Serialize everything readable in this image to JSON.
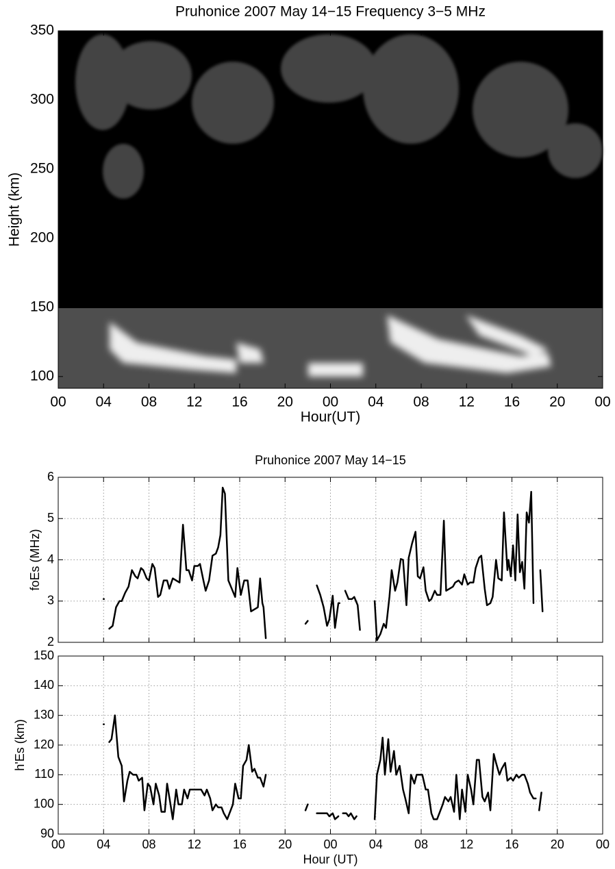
{
  "chart_data": [
    {
      "type": "image",
      "title": "Pruhonice 2007 May 14−15 Frequency 3−5 MHz",
      "xlabel": "Hour(UT)",
      "ylabel": "Height (km)",
      "xlim": [
        0,
        48
      ],
      "ylim": [
        91.5,
        350
      ],
      "xticks": [
        {
          "value": 0,
          "label": "00"
        },
        {
          "value": 4,
          "label": "04"
        },
        {
          "value": 8,
          "label": "08"
        },
        12,
        16,
        20,
        {
          "value": 24,
          "label": "00"
        },
        {
          "value": 28,
          "label": "04"
        },
        {
          "value": 32,
          "label": "08"
        },
        {
          "value": 36,
          "label": "12"
        },
        {
          "value": 40,
          "label": "16"
        },
        {
          "value": 44,
          "label": "20"
        },
        {
          "value": 48,
          "label": "00"
        }
      ],
      "yticks": [
        100,
        150,
        200,
        250,
        300,
        350
      ],
      "grid": false
    },
    {
      "type": "line",
      "title": "Pruhonice 2007 May 14−15",
      "ylabel": "foEs (MHz)",
      "xlim": [
        0,
        48
      ],
      "ylim": [
        2,
        6
      ],
      "xticks": [
        0,
        4,
        8,
        12,
        16,
        20,
        24,
        28,
        32,
        36,
        40,
        44,
        48
      ],
      "xtick_labels_shown": false,
      "yticks": [
        2,
        3,
        4,
        5,
        6
      ],
      "grid": true,
      "series": [
        {
          "color": "#000000",
          "x": [
            4.0,
            null,
            4.5,
            4.8,
            5.1,
            5.4,
            5.6,
            5.9,
            6.2,
            6.5,
            6.8,
            7.0,
            7.3,
            7.5,
            7.8,
            8.0,
            8.3,
            8.5,
            8.8,
            9.0,
            9.3,
            9.6,
            9.8,
            10.1,
            10.4,
            10.7,
            11.0,
            11.3,
            11.5,
            11.8,
            12.0,
            12.3,
            12.5,
            12.8,
            13.0,
            13.3,
            13.6,
            13.9,
            14.1,
            14.3,
            14.5,
            14.7,
            15.0,
            15.3,
            15.6,
            15.8,
            16.1,
            16.4,
            16.7,
            17.0,
            17.3,
            17.6,
            17.8,
            18.0,
            18.1,
            18.3,
            null,
            21.8,
            22.0,
            null,
            22.8,
            23.1,
            23.4,
            23.7,
            23.9,
            24.2,
            24.4,
            24.7,
            24.8,
            null,
            25.3,
            25.6,
            25.9,
            26.1,
            26.4,
            26.6,
            null,
            27.9,
            28.1,
            28.4,
            28.7,
            28.9,
            29.2,
            29.4,
            29.7,
            29.9,
            30.2,
            30.4,
            30.7,
            30.9,
            31.2,
            31.5,
            31.7,
            31.9,
            32.2,
            32.4,
            32.7,
            32.9,
            33.2,
            33.4,
            33.7,
            34.0,
            34.2,
            34.5,
            34.8,
            35.0,
            35.3,
            35.6,
            35.8,
            36.1,
            36.3,
            36.6,
            36.8,
            37.1,
            37.3,
            37.6,
            37.8,
            38.1,
            38.3,
            38.6,
            38.8,
            39.1,
            39.3,
            39.6,
            39.7,
            39.9,
            40.1,
            40.3,
            40.5,
            40.7,
            40.9,
            41.1,
            41.3,
            41.5,
            41.7,
            41.9,
            null,
            42.5,
            42.7
          ],
          "values": [
            3.05,
            null,
            2.33,
            2.4,
            2.85,
            3.0,
            3.0,
            3.2,
            3.35,
            3.75,
            3.6,
            3.55,
            3.8,
            3.75,
            3.55,
            3.5,
            3.9,
            3.8,
            3.1,
            3.15,
            3.5,
            3.5,
            3.3,
            3.55,
            3.5,
            3.45,
            4.85,
            3.75,
            3.75,
            3.5,
            3.85,
            3.85,
            3.9,
            3.5,
            3.25,
            3.5,
            4.1,
            4.15,
            4.3,
            4.6,
            5.75,
            5.6,
            3.5,
            3.3,
            3.1,
            3.8,
            3.15,
            3.5,
            3.5,
            2.75,
            2.8,
            2.85,
            3.55,
            2.95,
            2.85,
            2.1,
            null,
            2.45,
            2.52,
            null,
            3.38,
            3.15,
            2.85,
            2.4,
            2.55,
            3.13,
            2.35,
            2.95,
            2.95,
            null,
            3.25,
            3.05,
            3.05,
            3.1,
            2.9,
            2.3,
            null,
            3.0,
            2.05,
            2.2,
            2.45,
            2.35,
            3.1,
            3.75,
            3.25,
            3.45,
            4.02,
            4.0,
            2.9,
            4.05,
            4.4,
            4.68,
            3.6,
            3.55,
            3.82,
            3.25,
            3.0,
            3.05,
            3.25,
            3.15,
            3.15,
            4.95,
            3.25,
            3.3,
            3.35,
            3.45,
            3.5,
            3.4,
            3.65,
            3.4,
            3.45,
            3.45,
            3.8,
            4.05,
            4.1,
            3.3,
            2.9,
            2.95,
            3.1,
            4.0,
            3.55,
            3.5,
            5.15,
            3.75,
            4.0,
            3.6,
            4.35,
            3.5,
            5.1,
            3.7,
            3.95,
            3.3,
            5.15,
            4.9,
            5.65,
            2.95,
            null,
            3.75,
            2.75
          ]
        }
      ]
    },
    {
      "type": "line",
      "xlabel": "Hour (UT)",
      "ylabel": "h'Es (km)",
      "xlim": [
        0,
        48
      ],
      "ylim": [
        90,
        150
      ],
      "xticks": [
        {
          "value": 0,
          "label": "00"
        },
        {
          "value": 4,
          "label": "04"
        },
        {
          "value": 8,
          "label": "08"
        },
        12,
        16,
        20,
        {
          "value": 24,
          "label": "00"
        },
        {
          "value": 28,
          "label": "04"
        },
        {
          "value": 32,
          "label": "08"
        },
        {
          "value": 36,
          "label": "12"
        },
        {
          "value": 40,
          "label": "16"
        },
        {
          "value": 44,
          "label": "20"
        },
        {
          "value": 48,
          "label": "00"
        }
      ],
      "yticks": [
        90,
        100,
        110,
        120,
        130,
        140,
        150
      ],
      "grid": true,
      "series": [
        {
          "color": "#000000",
          "x": [
            4.0,
            null,
            4.5,
            4.7,
            5.0,
            5.3,
            5.6,
            5.8,
            6.1,
            6.3,
            6.6,
            6.9,
            7.1,
            7.4,
            7.6,
            7.9,
            8.1,
            8.4,
            8.6,
            8.9,
            9.1,
            9.4,
            9.6,
            9.9,
            10.1,
            10.4,
            10.6,
            10.9,
            11.1,
            11.4,
            11.6,
            11.9,
            12.1,
            12.4,
            12.6,
            12.9,
            13.1,
            13.4,
            13.6,
            13.9,
            14.1,
            14.4,
            14.6,
            14.9,
            15.1,
            15.4,
            15.6,
            15.9,
            16.1,
            16.3,
            16.6,
            16.8,
            17.1,
            17.3,
            17.6,
            17.8,
            18.1,
            18.3,
            null,
            21.8,
            22.0,
            null,
            22.8,
            23.1,
            23.4,
            23.7,
            23.9,
            24.2,
            24.4,
            24.7,
            null,
            25.1,
            25.4,
            25.6,
            25.8,
            26.1,
            26.3,
            null,
            27.9,
            28.1,
            28.4,
            28.6,
            28.8,
            29.1,
            29.3,
            29.6,
            29.8,
            30.1,
            30.4,
            30.6,
            30.9,
            31.1,
            31.4,
            31.6,
            31.9,
            32.1,
            32.4,
            32.6,
            32.9,
            33.1,
            33.4,
            33.6,
            33.9,
            34.1,
            34.4,
            34.6,
            34.9,
            35.1,
            35.4,
            35.6,
            35.9,
            36.1,
            36.4,
            36.6,
            36.9,
            37.1,
            37.4,
            37.6,
            37.9,
            38.1,
            38.4,
            38.6,
            38.9,
            39.1,
            39.4,
            39.6,
            39.9,
            40.1,
            40.4,
            40.6,
            40.9,
            41.1,
            41.4,
            41.6,
            41.9,
            42.1,
            null,
            42.4,
            42.6
          ],
          "values": [
            127,
            null,
            121,
            122,
            130,
            116,
            113,
            101,
            108,
            111,
            110,
            110,
            108,
            109,
            98,
            107,
            106,
            100,
            107,
            103,
            97.5,
            97.5,
            107,
            100,
            95,
            105,
            100,
            100,
            105,
            102,
            105,
            105,
            105,
            105,
            105,
            103,
            105,
            102,
            98,
            100,
            99,
            99,
            97,
            95,
            97,
            100,
            107,
            102,
            102,
            113,
            115,
            120,
            111,
            112,
            109,
            109,
            106,
            110,
            null,
            98,
            100,
            null,
            97,
            97,
            97,
            97,
            96,
            97,
            95,
            96,
            null,
            97,
            97,
            96,
            97,
            95,
            96,
            null,
            95,
            110,
            115,
            122.5,
            110,
            122,
            111,
            118,
            110,
            113,
            105,
            102,
            97,
            110,
            107,
            110,
            110,
            110,
            105,
            105,
            97,
            95,
            95,
            97,
            100,
            102.5,
            101,
            102.5,
            97.5,
            110,
            95,
            105,
            97.5,
            110,
            105,
            100,
            115,
            115,
            102.5,
            101,
            104,
            98,
            117,
            114,
            110,
            112,
            114,
            108,
            109,
            108,
            110,
            109,
            110,
            110,
            107,
            104,
            102,
            102,
            null,
            98,
            104
          ]
        }
      ]
    }
  ]
}
